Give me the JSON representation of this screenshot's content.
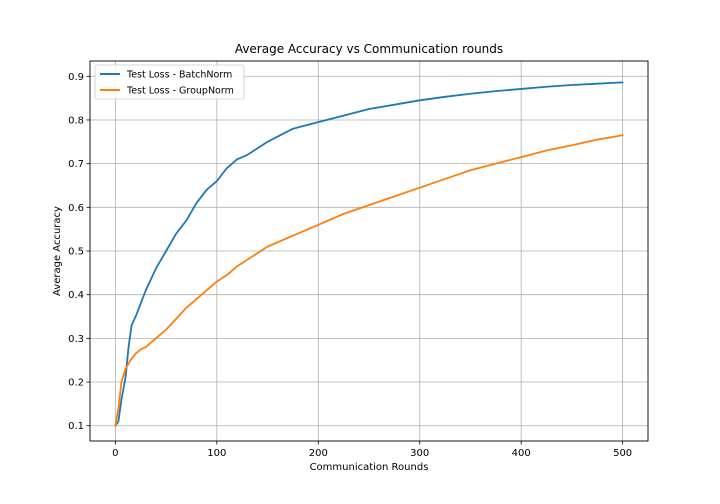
{
  "chart_data": {
    "type": "line",
    "title": "Average Accuracy vs Communication rounds",
    "xlabel": "Communication Rounds",
    "ylabel": "Average Accuracy",
    "xlim": [
      -25,
      525
    ],
    "ylim": [
      0.065,
      0.935
    ],
    "xticks": [
      0,
      100,
      200,
      300,
      400,
      500
    ],
    "xtick_labels": [
      "0",
      "100",
      "200",
      "300",
      "400",
      "500"
    ],
    "yticks": [
      0.1,
      0.2,
      0.3,
      0.4,
      0.5,
      0.6,
      0.7,
      0.8,
      0.9
    ],
    "ytick_labels": [
      "0.1",
      "0.2",
      "0.3",
      "0.4",
      "0.5",
      "0.6",
      "0.7",
      "0.8",
      "0.9"
    ],
    "grid": true,
    "legend_position": "top-left",
    "series": [
      {
        "name": "Test Loss - BatchNorm",
        "color": "#1f77b4",
        "x": [
          0,
          3,
          6,
          10,
          13,
          16,
          20,
          25,
          30,
          40,
          50,
          60,
          70,
          80,
          90,
          100,
          110,
          120,
          130,
          140,
          150,
          175,
          200,
          225,
          250,
          275,
          300,
          325,
          350,
          375,
          400,
          425,
          450,
          475,
          500
        ],
        "y": [
          0.1,
          0.11,
          0.16,
          0.21,
          0.28,
          0.33,
          0.35,
          0.38,
          0.41,
          0.46,
          0.5,
          0.54,
          0.57,
          0.61,
          0.64,
          0.66,
          0.69,
          0.71,
          0.72,
          0.735,
          0.75,
          0.78,
          0.795,
          0.81,
          0.825,
          0.835,
          0.845,
          0.853,
          0.86,
          0.866,
          0.871,
          0.876,
          0.88,
          0.883,
          0.886
        ]
      },
      {
        "name": "Test Loss - GroupNorm",
        "color": "#ff7f0e",
        "x": [
          0,
          3,
          6,
          10,
          15,
          20,
          25,
          30,
          40,
          50,
          60,
          70,
          80,
          90,
          100,
          110,
          120,
          130,
          140,
          150,
          175,
          200,
          225,
          250,
          275,
          300,
          325,
          350,
          375,
          400,
          425,
          450,
          475,
          500
        ],
        "y": [
          0.1,
          0.14,
          0.2,
          0.23,
          0.25,
          0.265,
          0.275,
          0.28,
          0.3,
          0.32,
          0.345,
          0.37,
          0.39,
          0.41,
          0.43,
          0.445,
          0.465,
          0.48,
          0.495,
          0.51,
          0.535,
          0.56,
          0.585,
          0.605,
          0.625,
          0.645,
          0.665,
          0.685,
          0.7,
          0.715,
          0.73,
          0.742,
          0.755,
          0.765
        ]
      }
    ]
  }
}
